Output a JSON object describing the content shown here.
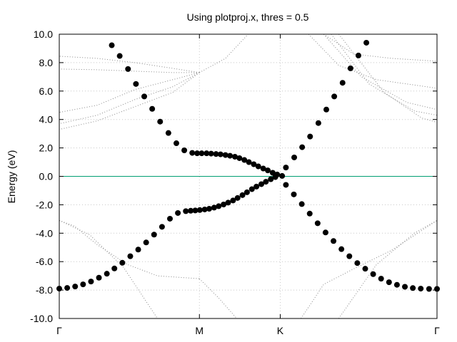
{
  "chart_data": {
    "type": "scatter",
    "title": "Using plotproj.x, thres = 0.5",
    "xlabel": "",
    "ylabel": "Energy (eV)",
    "xlim": [
      0,
      1
    ],
    "ylim": [
      -10,
      10
    ],
    "ytick_step": 2,
    "ytick_labels": [
      "-10.0",
      "-8.0",
      "-6.0",
      "-4.0",
      "-2.0",
      "0.0",
      "2.0",
      "4.0",
      "6.0",
      "8.0",
      "10.0"
    ],
    "xticks": [
      {
        "label": "Γ",
        "x": 0
      },
      {
        "label": "M",
        "x": 0.371
      },
      {
        "label": "K",
        "x": 0.585
      },
      {
        "label": "Γ",
        "x": 1
      }
    ],
    "grid": true,
    "fermi_level": 0,
    "colors": {
      "points": "#000000",
      "fermi": "#009e73",
      "bands": "#888888",
      "grid": "#c8c8c8"
    },
    "series": [
      {
        "points": [
          [
            0.139,
            9.22
          ],
          [
            0.16,
            8.47
          ],
          [
            0.182,
            7.55
          ],
          [
            0.203,
            6.5
          ],
          [
            0.225,
            5.62
          ],
          [
            0.246,
            4.75
          ],
          [
            0.267,
            3.85
          ],
          [
            0.289,
            3.05
          ],
          [
            0.31,
            2.33
          ],
          [
            0.331,
            1.83
          ],
          [
            0.352,
            1.65
          ],
          [
            0.365,
            1.62
          ],
          [
            0.377,
            1.62
          ],
          [
            0.39,
            1.62
          ],
          [
            0.402,
            1.6
          ],
          [
            0.415,
            1.57
          ],
          [
            0.427,
            1.55
          ],
          [
            0.44,
            1.5
          ],
          [
            0.452,
            1.45
          ],
          [
            0.465,
            1.38
          ],
          [
            0.477,
            1.28
          ],
          [
            0.49,
            1.15
          ],
          [
            0.502,
            1.0
          ],
          [
            0.515,
            0.85
          ],
          [
            0.527,
            0.7
          ],
          [
            0.54,
            0.55
          ],
          [
            0.552,
            0.42
          ],
          [
            0.565,
            0.25
          ],
          [
            0.577,
            0.13
          ],
          [
            0.59,
            0.03
          ],
          [
            0.6,
            0.62
          ],
          [
            0.622,
            1.33
          ],
          [
            0.643,
            2.05
          ],
          [
            0.664,
            2.8
          ],
          [
            0.686,
            3.75
          ],
          [
            0.707,
            4.7
          ],
          [
            0.728,
            5.62
          ],
          [
            0.75,
            6.58
          ],
          [
            0.771,
            7.6
          ],
          [
            0.792,
            8.5
          ],
          [
            0.813,
            9.4
          ]
        ]
      },
      {
        "points": [
          [
            0.0,
            -7.9
          ],
          [
            0.021,
            -7.85
          ],
          [
            0.042,
            -7.75
          ],
          [
            0.063,
            -7.6
          ],
          [
            0.084,
            -7.4
          ],
          [
            0.105,
            -7.13
          ],
          [
            0.126,
            -6.85
          ],
          [
            0.146,
            -6.48
          ],
          [
            0.167,
            -6.08
          ],
          [
            0.188,
            -5.62
          ],
          [
            0.209,
            -5.15
          ],
          [
            0.23,
            -4.65
          ],
          [
            0.251,
            -4.1
          ],
          [
            0.272,
            -3.55
          ],
          [
            0.293,
            -2.98
          ],
          [
            0.314,
            -2.58
          ],
          [
            0.335,
            -2.45
          ],
          [
            0.348,
            -2.42
          ],
          [
            0.36,
            -2.4
          ],
          [
            0.372,
            -2.37
          ],
          [
            0.385,
            -2.33
          ],
          [
            0.397,
            -2.28
          ],
          [
            0.41,
            -2.2
          ],
          [
            0.422,
            -2.1
          ],
          [
            0.435,
            -1.98
          ],
          [
            0.447,
            -1.85
          ],
          [
            0.46,
            -1.7
          ],
          [
            0.472,
            -1.52
          ],
          [
            0.485,
            -1.32
          ],
          [
            0.497,
            -1.12
          ],
          [
            0.51,
            -0.9
          ],
          [
            0.522,
            -0.72
          ],
          [
            0.535,
            -0.55
          ],
          [
            0.547,
            -0.38
          ],
          [
            0.56,
            -0.2
          ],
          [
            0.572,
            -0.05
          ],
          [
            0.6,
            -0.6
          ],
          [
            0.621,
            -1.27
          ],
          [
            0.642,
            -1.95
          ],
          [
            0.663,
            -2.62
          ],
          [
            0.684,
            -3.3
          ],
          [
            0.705,
            -3.95
          ],
          [
            0.726,
            -4.55
          ],
          [
            0.747,
            -5.12
          ],
          [
            0.768,
            -5.62
          ],
          [
            0.789,
            -6.1
          ],
          [
            0.81,
            -6.5
          ],
          [
            0.831,
            -6.88
          ],
          [
            0.852,
            -7.2
          ],
          [
            0.873,
            -7.45
          ],
          [
            0.894,
            -7.63
          ],
          [
            0.915,
            -7.77
          ],
          [
            0.936,
            -7.86
          ],
          [
            0.957,
            -7.9
          ],
          [
            0.979,
            -7.92
          ],
          [
            1.0,
            -7.92
          ]
        ]
      }
    ],
    "background_bands": [
      {
        "x": [
          0.371,
          0.3,
          0.2,
          0.1,
          0.0
        ],
        "y": [
          7.3,
          7.6,
          8.0,
          8.3,
          8.45
        ]
      },
      {
        "x": [
          0.371,
          0.3,
          0.2,
          0.1,
          0.0
        ],
        "y": [
          7.3,
          7.3,
          7.4,
          7.5,
          7.55
        ]
      },
      {
        "x": [
          0.371,
          0.3,
          0.2,
          0.1,
          0.0
        ],
        "y": [
          7.3,
          6.8,
          6.1,
          5.0,
          4.5
        ]
      },
      {
        "x": [
          0.371,
          0.3,
          0.2,
          0.1,
          0.0
        ],
        "y": [
          7.3,
          6.3,
          5.4,
          4.3,
          3.7
        ]
      },
      {
        "x": [
          0.371,
          0.3,
          0.2,
          0.1,
          0.0
        ],
        "y": [
          7.3,
          5.9,
          4.9,
          3.9,
          3.3
        ]
      },
      {
        "x": [
          0.0,
          0.04,
          0.1,
          0.18,
          0.26,
          0.371
        ],
        "y": [
          -3.1,
          -3.5,
          -4.8,
          -6.2,
          -7.0,
          -7.2
        ]
      },
      {
        "x": [
          0.0,
          0.08,
          0.17,
          0.26
        ],
        "y": [
          -3.1,
          -4.1,
          -6.4,
          -10.0
        ]
      },
      {
        "x": [
          0.371,
          0.44,
          0.5
        ],
        "y": [
          7.3,
          8.3,
          10.0
        ]
      },
      {
        "x": [
          0.371,
          0.42,
          0.47
        ],
        "y": [
          -7.2,
          -8.5,
          -10.0
        ]
      },
      {
        "x": [
          0.64,
          0.7,
          0.78,
          0.88,
          1.0
        ],
        "y": [
          -10.0,
          -7.6,
          -6.5,
          -5.2,
          -3.1
        ]
      },
      {
        "x": [
          0.74,
          0.84,
          0.94,
          1.0
        ],
        "y": [
          -10.0,
          -6.2,
          -4.0,
          -3.1
        ]
      },
      {
        "x": [
          0.7,
          0.78,
          0.88,
          1.0
        ],
        "y": [
          10.0,
          8.6,
          8.3,
          8.1
        ]
      },
      {
        "x": [
          0.66,
          0.74,
          0.84,
          1.0
        ],
        "y": [
          10.0,
          7.8,
          6.8,
          6.2
        ]
      },
      {
        "x": [
          0.7,
          0.8,
          0.92,
          1.0
        ],
        "y": [
          10.0,
          7.0,
          5.2,
          4.7
        ]
      },
      {
        "x": [
          0.72,
          0.82,
          0.94,
          1.0
        ],
        "y": [
          10.0,
          6.5,
          4.6,
          4.3
        ]
      },
      {
        "x": [
          0.74,
          0.86,
          0.96,
          1.0
        ],
        "y": [
          10.0,
          5.9,
          4.1,
          3.8
        ]
      }
    ]
  }
}
